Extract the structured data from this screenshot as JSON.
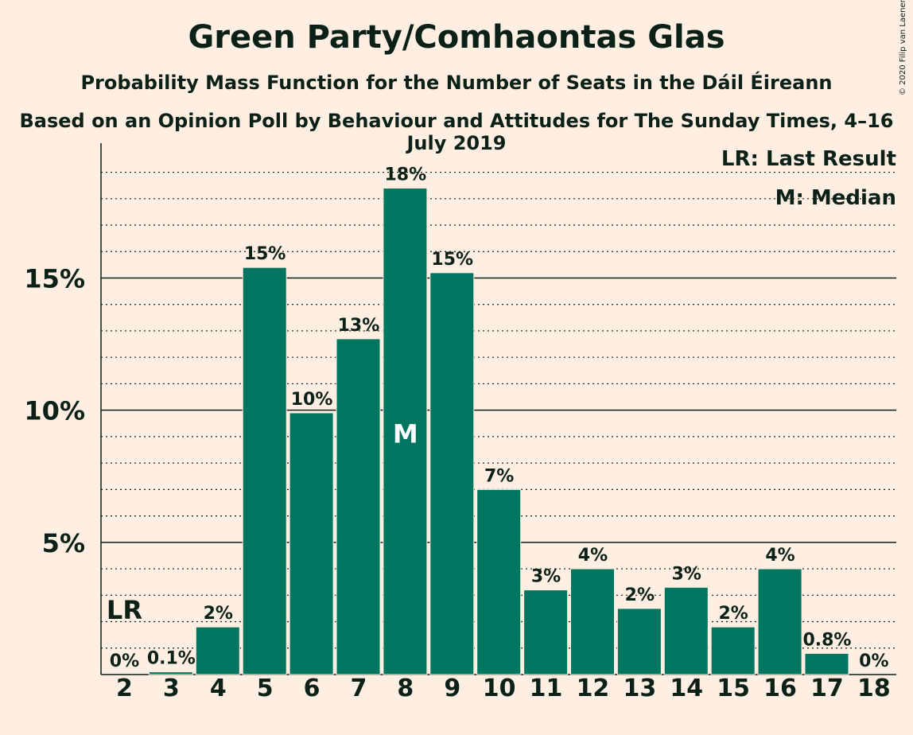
{
  "chart_data": {
    "type": "bar",
    "title": "Green Party/Comhaontas Glas",
    "subtitle": "Probability Mass Function for the Number of Seats in the Dáil Éireann",
    "subtitle2": "Based on an Opinion Poll by Behaviour and Attitudes for The Sunday Times, 4–16 July 2019",
    "copyright": "© 2020 Filip van Laenen",
    "categories": [
      "2",
      "3",
      "4",
      "5",
      "6",
      "7",
      "8",
      "9",
      "10",
      "11",
      "12",
      "13",
      "14",
      "15",
      "16",
      "17",
      "18"
    ],
    "values": [
      0.0,
      0.1,
      1.8,
      15.4,
      9.9,
      12.7,
      18.4,
      15.2,
      7.0,
      3.2,
      4.0,
      2.5,
      3.3,
      1.8,
      4.0,
      0.8,
      0.0
    ],
    "data_labels": [
      "0%",
      "0.1%",
      "2%",
      "15%",
      "10%",
      "13%",
      "18%",
      "15%",
      "7%",
      "3%",
      "4%",
      "2%",
      "3%",
      "2%",
      "4%",
      "0.8%",
      "0%"
    ],
    "yticks": [
      5,
      10,
      15
    ],
    "ytick_labels": [
      "5%",
      "10%",
      "15%"
    ],
    "ylim": [
      0,
      20
    ],
    "grid": "dotted every 1%, solid at 5% steps",
    "last_result_seat": "2",
    "last_result_marker": "LR",
    "median_seat": "8",
    "median_marker": "M",
    "legend": {
      "position": "top-right",
      "last_result": "LR: Last Result",
      "median": "M: Median"
    },
    "colors": {
      "bar": "#007560",
      "background": "#FFEEE2",
      "text": "#0B2117",
      "marker_on_bar": "#FFFFFF"
    }
  }
}
